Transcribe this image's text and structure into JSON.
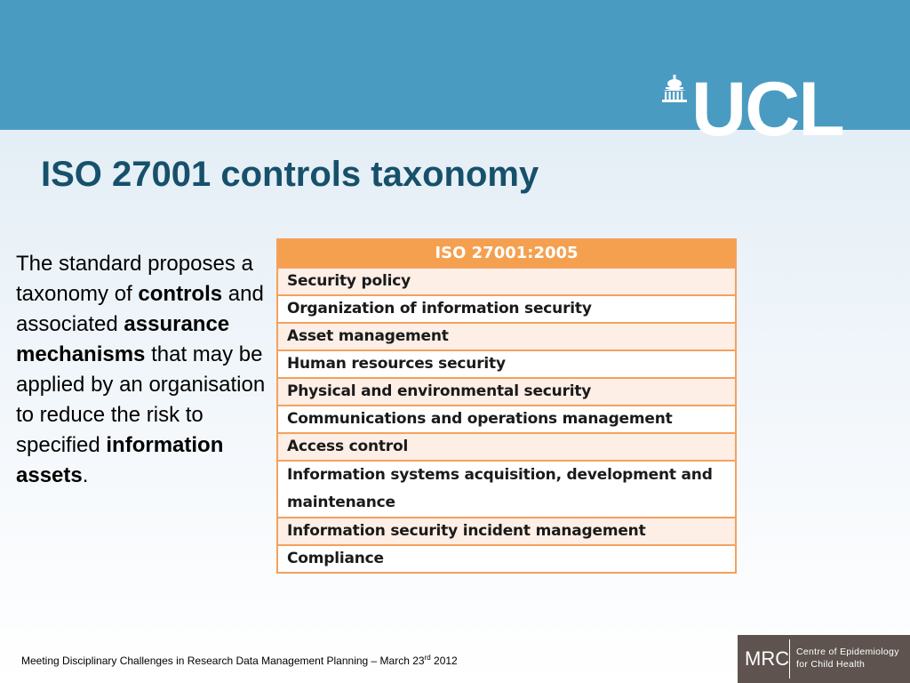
{
  "header": {
    "logo_text": "UCL"
  },
  "title": "ISO 27001 controls taxonomy",
  "body": {
    "part1": "The standard proposes a taxonomy of ",
    "bold1": "controls",
    "part2": " and associated ",
    "bold2": "assurance mechanisms",
    "part3": " that may be applied by an organisation to reduce the risk to specified ",
    "bold3": "information assets",
    "part4": "."
  },
  "iso_table": {
    "header": "ISO 27001:2005",
    "rows": [
      "Security policy",
      "Organization of information security",
      "Asset management",
      "Human resources security",
      "Physical and environmental security",
      "Communications and operations management",
      "Access control",
      "Information systems acquisition, development and maintenance",
      "Information security incident management",
      "Compliance"
    ]
  },
  "footer": {
    "text_before": "Meeting Disciplinary Challenges in Research Data Management Planning – March 23",
    "superscript": "rd",
    "text_after": " 2012"
  },
  "mrc_logo": {
    "abbr": "MRC",
    "line1": "Centre of Epidemiology",
    "line2": "for Child Health"
  },
  "colors": {
    "header_band": "#4a9bc1",
    "title": "#17506b",
    "table_header": "#f5a04f",
    "table_border": "#f4a15d",
    "table_shade": "#fdeee6",
    "mrc_bg": "#5e534f"
  }
}
